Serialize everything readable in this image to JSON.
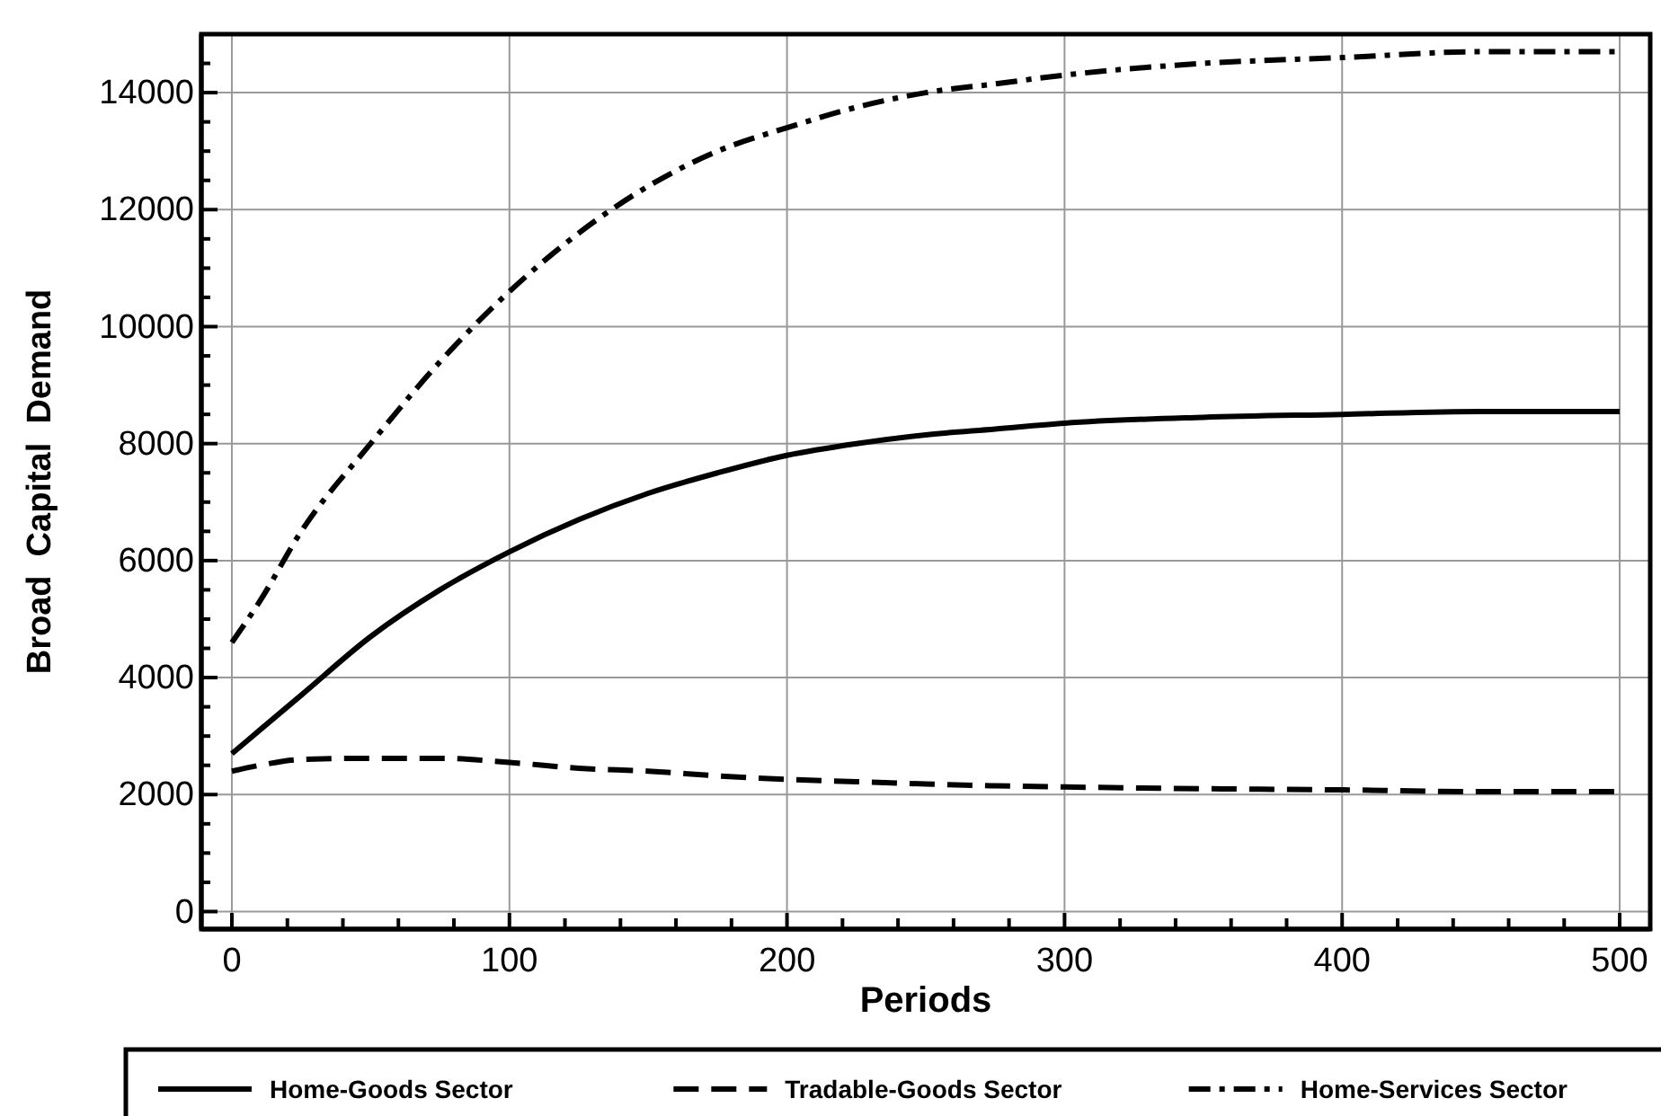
{
  "chart_data": {
    "type": "line",
    "xlabel": "Periods",
    "ylabel": "Broad  Capital  Demand",
    "xlim": [
      -11,
      511
    ],
    "ylim": [
      -300,
      15000
    ],
    "xticks": [
      0,
      {
        "value": 20,
        "label": null
      },
      {
        "value": 40,
        "label": null
      },
      {
        "value": 60,
        "label": null
      },
      {
        "value": 80,
        "label": null
      },
      100,
      {
        "value": 120,
        "label": null
      },
      {
        "value": 140,
        "label": null
      },
      {
        "value": 160,
        "label": null
      },
      {
        "value": 180,
        "label": null
      },
      200,
      {
        "value": 220,
        "label": null
      },
      {
        "value": 240,
        "label": null
      },
      {
        "value": 260,
        "label": null
      },
      {
        "value": 280,
        "label": null
      },
      300,
      {
        "value": 320,
        "label": null
      },
      {
        "value": 340,
        "label": null
      },
      {
        "value": 360,
        "label": null
      },
      {
        "value": 380,
        "label": null
      },
      400,
      {
        "value": 420,
        "label": null
      },
      {
        "value": 440,
        "label": null
      },
      {
        "value": 460,
        "label": null
      },
      {
        "value": 480,
        "label": null
      },
      500
    ],
    "yticks": [
      0,
      {
        "value": 500,
        "label": null
      },
      {
        "value": 1000,
        "label": null
      },
      {
        "value": 1500,
        "label": null
      },
      2000,
      {
        "value": 2500,
        "label": null
      },
      {
        "value": 3000,
        "label": null
      },
      {
        "value": 3500,
        "label": null
      },
      4000,
      {
        "value": 4500,
        "label": null
      },
      {
        "value": 5000,
        "label": null
      },
      {
        "value": 5500,
        "label": null
      },
      6000,
      {
        "value": 6500,
        "label": null
      },
      {
        "value": 7000,
        "label": null
      },
      {
        "value": 7500,
        "label": null
      },
      8000,
      {
        "value": 8500,
        "label": null
      },
      {
        "value": 9000,
        "label": null
      },
      {
        "value": 9500,
        "label": null
      },
      10000,
      {
        "value": 10500,
        "label": null
      },
      {
        "value": 11000,
        "label": null
      },
      {
        "value": 11500,
        "label": null
      },
      12000,
      {
        "value": 12500,
        "label": null
      },
      {
        "value": 13000,
        "label": null
      },
      {
        "value": 13500,
        "label": null
      },
      14000,
      {
        "value": 14500,
        "label": null
      }
    ],
    "grid": true,
    "legend": "bottom",
    "marker": "none",
    "x": [
      0,
      10,
      25,
      50,
      75,
      100,
      125,
      150,
      175,
      200,
      225,
      250,
      275,
      300,
      350,
      400,
      450,
      500
    ],
    "series": [
      {
        "name": "Home-Goods Sector",
        "color": "#000000",
        "line_style": "solid",
        "values": [
          2700,
          3100,
          3700,
          4700,
          5500,
          6150,
          6700,
          7150,
          7500,
          7800,
          8000,
          8150,
          8250,
          8350,
          8450,
          8500,
          8550,
          8550
        ]
      },
      {
        "name": "Tradable-Goods Sector",
        "color": "#000000",
        "line_style": "dashed",
        "values": [
          2400,
          2500,
          2600,
          2620,
          2620,
          2550,
          2450,
          2400,
          2320,
          2260,
          2220,
          2180,
          2150,
          2130,
          2100,
          2080,
          2050,
          2050
        ]
      },
      {
        "name": "Home-Services Sector",
        "color": "#000000",
        "line_style": "dashdot",
        "values": [
          4600,
          5300,
          6500,
          8000,
          9400,
          10600,
          11600,
          12400,
          13000,
          13400,
          13750,
          14000,
          14150,
          14300,
          14500,
          14600,
          14700,
          14700
        ]
      }
    ]
  }
}
